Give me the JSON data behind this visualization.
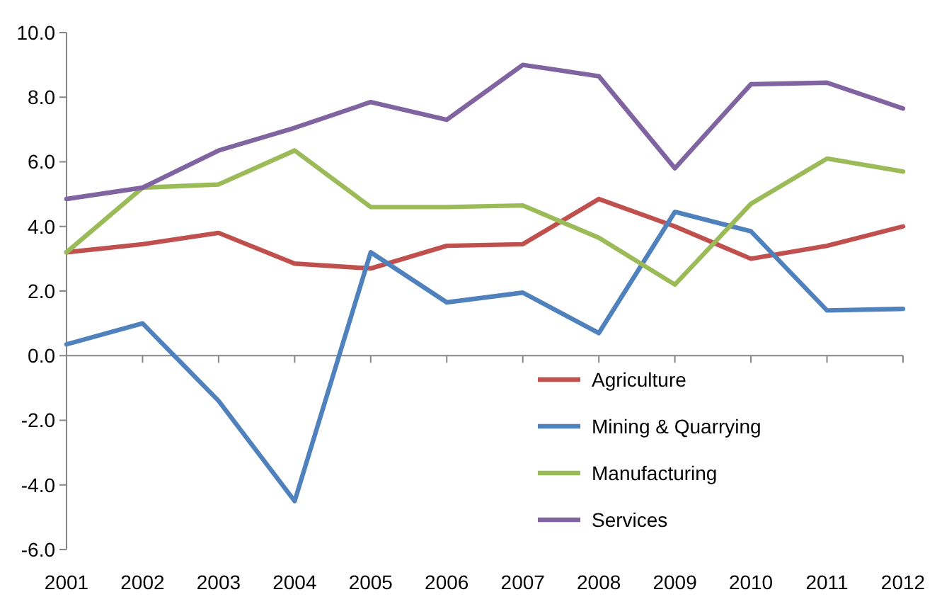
{
  "chart_data": {
    "type": "line",
    "categories": [
      "2001",
      "2002",
      "2003",
      "2004",
      "2005",
      "2006",
      "2007",
      "2008",
      "2009",
      "2010",
      "2011",
      "2012"
    ],
    "ylim": [
      -6,
      10
    ],
    "yticks": [
      {
        "value": -6,
        "label": "-6.0"
      },
      {
        "value": -4,
        "label": "-4.0"
      },
      {
        "value": -2,
        "label": "-2.0"
      },
      {
        "value": 0,
        "label": "0.0"
      },
      {
        "value": 2,
        "label": "2.0"
      },
      {
        "value": 4,
        "label": "4.0"
      },
      {
        "value": 6,
        "label": "6.0"
      },
      {
        "value": 8,
        "label": "8.0"
      },
      {
        "value": 10,
        "label": "10.0"
      }
    ],
    "legend": "bottom right",
    "marker": "none",
    "line_style": "solid",
    "series": [
      {
        "name": "Agriculture",
        "color": "#c0504d",
        "values": [
          3.2,
          3.45,
          3.8,
          2.85,
          2.7,
          3.4,
          3.45,
          4.85,
          4.0,
          3.0,
          3.4,
          4.0
        ]
      },
      {
        "name": "Mining & Quarrying",
        "color": "#4f81bd",
        "values": [
          0.35,
          1.0,
          -1.4,
          -4.5,
          3.2,
          1.65,
          1.95,
          0.7,
          4.45,
          3.85,
          1.4,
          1.45
        ]
      },
      {
        "name": "Manufacturing",
        "color": "#9bbb59",
        "values": [
          3.2,
          5.2,
          5.3,
          6.35,
          4.6,
          4.6,
          4.65,
          3.65,
          2.2,
          4.7,
          6.1,
          5.7
        ]
      },
      {
        "name": "Services",
        "color": "#8064a2",
        "values": [
          4.85,
          5.2,
          6.35,
          7.05,
          7.85,
          7.3,
          9.0,
          8.65,
          5.8,
          8.4,
          8.45,
          7.65
        ]
      }
    ]
  }
}
